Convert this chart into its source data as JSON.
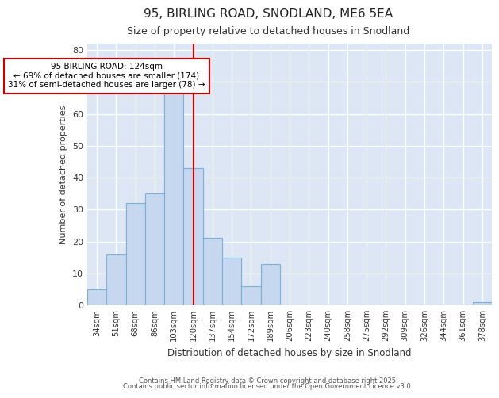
{
  "title": "95, BIRLING ROAD, SNODLAND, ME6 5EA",
  "subtitle": "Size of property relative to detached houses in Snodland",
  "xlabel": "Distribution of detached houses by size in Snodland",
  "ylabel": "Number of detached properties",
  "bar_labels": [
    "34sqm",
    "51sqm",
    "68sqm",
    "86sqm",
    "103sqm",
    "120sqm",
    "137sqm",
    "154sqm",
    "172sqm",
    "189sqm",
    "206sqm",
    "223sqm",
    "240sqm",
    "258sqm",
    "275sqm",
    "292sqm",
    "309sqm",
    "326sqm",
    "344sqm",
    "361sqm",
    "378sqm"
  ],
  "bar_values": [
    5,
    16,
    32,
    35,
    67,
    43,
    21,
    15,
    6,
    13,
    0,
    0,
    0,
    0,
    0,
    0,
    0,
    0,
    0,
    0,
    1
  ],
  "bar_color": "#c5d8f0",
  "bar_edge_color": "#7bafd4",
  "plot_bg_color": "#dce6f5",
  "fig_bg_color": "#ffffff",
  "vline_index": 5,
  "vline_color": "#cc0000",
  "annotation_title": "95 BIRLING ROAD: 124sqm",
  "annotation_line1": "← 69% of detached houses are smaller (174)",
  "annotation_line2": "31% of semi-detached houses are larger (78) →",
  "annotation_box_facecolor": "#ffffff",
  "annotation_box_edgecolor": "#cc0000",
  "ylim": [
    0,
    82
  ],
  "yticks": [
    0,
    10,
    20,
    30,
    40,
    50,
    60,
    70,
    80
  ],
  "grid_color": "#ffffff",
  "footer1": "Contains HM Land Registry data © Crown copyright and database right 2025.",
  "footer2": "Contains public sector information licensed under the Open Government Licence v3.0."
}
